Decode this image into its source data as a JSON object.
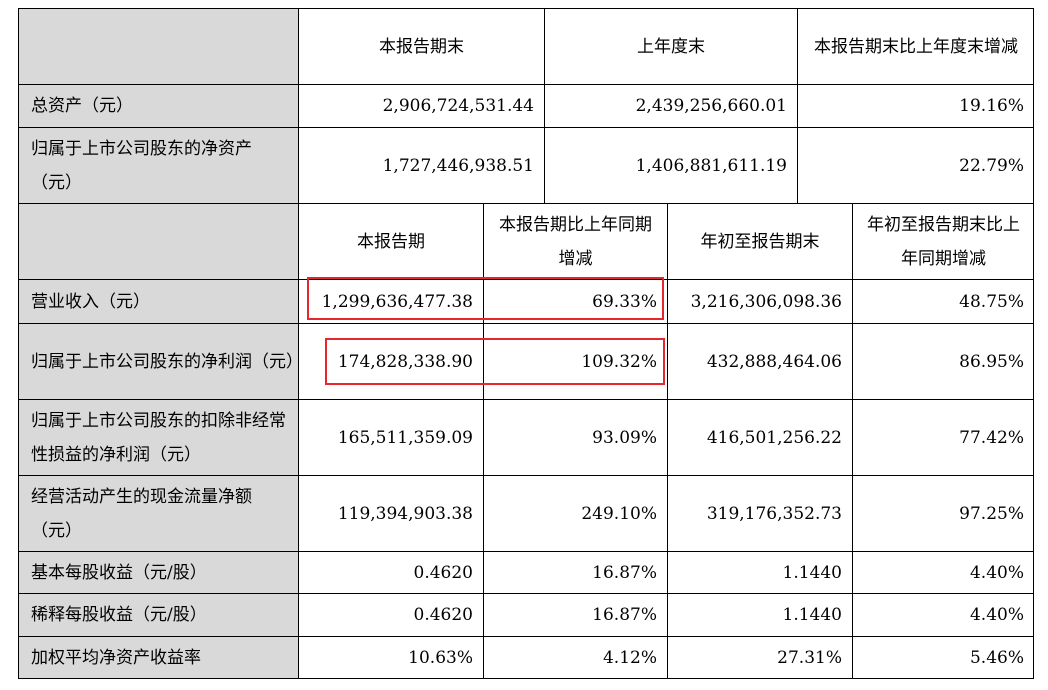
{
  "section1": {
    "headers": [
      "本报告期末",
      "上年度末",
      "本报告期末比上年度末增减"
    ],
    "rows": [
      {
        "label": "总资产（元）",
        "values": [
          "2,906,724,531.44",
          "2,439,256,660.01",
          "19.16%"
        ]
      },
      {
        "label": "归属于上市公司股东的净资产（元）",
        "values": [
          "1,727,446,938.51",
          "1,406,881,611.19",
          "22.79%"
        ]
      }
    ]
  },
  "section2": {
    "headers": [
      "本报告期",
      "本报告期比上年同期增减",
      "年初至报告期末",
      "年初至报告期末比上年同期增减"
    ],
    "rows": [
      {
        "label": "营业收入（元）",
        "values": [
          "1,299,636,477.38",
          "69.33%",
          "3,216,306,098.36",
          "48.75%"
        ]
      },
      {
        "label": "归属于上市公司股东的净利润（元）",
        "values": [
          "174,828,338.90",
          "109.32%",
          "432,888,464.06",
          "86.95%"
        ]
      },
      {
        "label": "归属于上市公司股东的扣除非经常性损益的净利润（元）",
        "values": [
          "165,511,359.09",
          "93.09%",
          "416,501,256.22",
          "77.42%"
        ]
      },
      {
        "label": "经营活动产生的现金流量净额（元）",
        "values": [
          "119,394,903.38",
          "249.10%",
          "319,176,352.73",
          "97.25%"
        ]
      },
      {
        "label": "基本每股收益（元/股）",
        "values": [
          "0.4620",
          "16.87%",
          "1.1440",
          "4.40%"
        ]
      },
      {
        "label": "稀释每股收益（元/股）",
        "values": [
          "0.4620",
          "16.87%",
          "1.1440",
          "4.40%"
        ]
      },
      {
        "label": "加权平均净资产收益率",
        "values": [
          "10.63%",
          "4.12%",
          "27.31%",
          "5.46%"
        ]
      }
    ]
  },
  "highlight_color": "#e8262f"
}
